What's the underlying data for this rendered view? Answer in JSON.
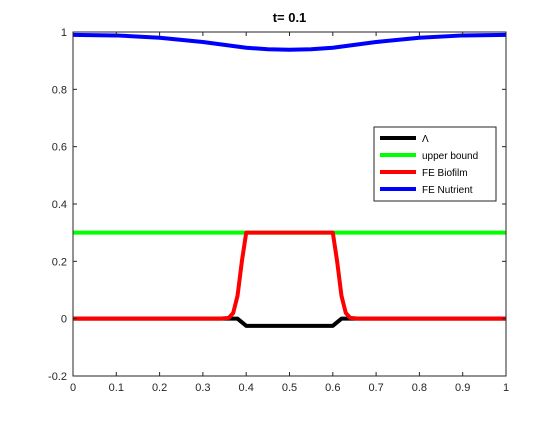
{
  "chart_data": {
    "type": "line",
    "title": "t=   0.1",
    "xlabel": "",
    "ylabel": "",
    "xlim": [
      0,
      1
    ],
    "ylim": [
      -0.2,
      1
    ],
    "xticks": [
      "0",
      "0.1",
      "0.2",
      "0.3",
      "0.4",
      "0.5",
      "0.6",
      "0.7",
      "0.8",
      "0.9",
      "1"
    ],
    "yticks": [
      "-0.2",
      "0",
      "0.2",
      "0.4",
      "0.6",
      "0.8",
      "1"
    ],
    "grid": false,
    "legend_position": "right",
    "series": [
      {
        "name": "Λ",
        "color": "#000000",
        "x": [
          0,
          0.36,
          0.38,
          0.4,
          0.42,
          0.5,
          0.58,
          0.6,
          0.62,
          0.64,
          1
        ],
        "y": [
          0,
          0,
          0,
          -0.025,
          -0.025,
          -0.025,
          -0.025,
          -0.025,
          0,
          0,
          0
        ]
      },
      {
        "name": "upper bound",
        "color": "#00ff00",
        "x": [
          0,
          1
        ],
        "y": [
          0.3,
          0.3
        ]
      },
      {
        "name": "FE Biofilm",
        "color": "#ff0000",
        "x": [
          0,
          0.34,
          0.36,
          0.37,
          0.38,
          0.39,
          0.4,
          0.5,
          0.6,
          0.61,
          0.62,
          0.63,
          0.64,
          0.66,
          1
        ],
        "y": [
          0,
          0,
          0.003,
          0.02,
          0.08,
          0.2,
          0.3,
          0.3,
          0.3,
          0.2,
          0.08,
          0.02,
          0.003,
          0,
          0
        ]
      },
      {
        "name": "FE Nutrient",
        "color": "#0000ff",
        "x": [
          0,
          0.1,
          0.2,
          0.3,
          0.35,
          0.4,
          0.45,
          0.5,
          0.55,
          0.6,
          0.65,
          0.7,
          0.8,
          0.9,
          1
        ],
        "y": [
          0.99,
          0.988,
          0.98,
          0.965,
          0.955,
          0.945,
          0.94,
          0.938,
          0.94,
          0.945,
          0.955,
          0.965,
          0.98,
          0.988,
          0.99
        ]
      }
    ]
  }
}
